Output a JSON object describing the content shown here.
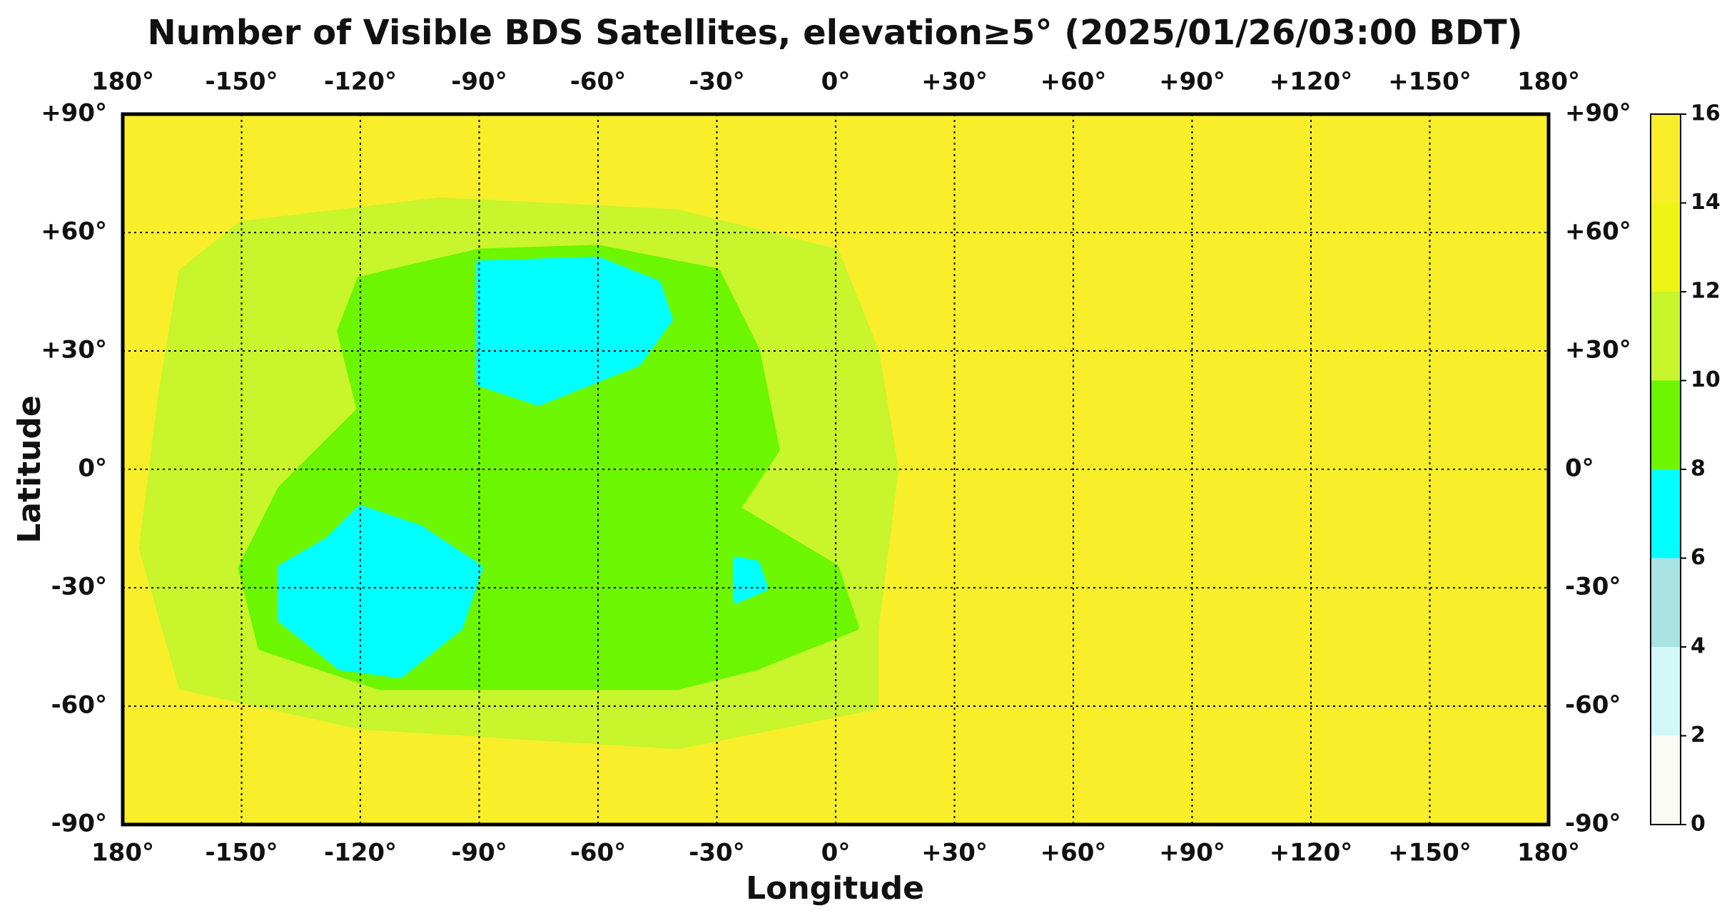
{
  "chart_data": {
    "type": "map",
    "title": "Number of Visible BDS Satellites, elevation≥5° (2025/01/26/03:00 BDT)",
    "x_label": "Longitude",
    "y_label": "Latitude",
    "xlim": [
      -180,
      180
    ],
    "ylim": [
      -90,
      90
    ],
    "xticks": [
      {
        "value": -180,
        "label": "180°"
      },
      {
        "value": -150,
        "label": "-150°"
      },
      {
        "value": -120,
        "label": "-120°"
      },
      {
        "value": -90,
        "label": "-90°"
      },
      {
        "value": -60,
        "label": "-60°"
      },
      {
        "value": -30,
        "label": "-30°"
      },
      {
        "value": 0,
        "label": "0°"
      },
      {
        "value": 30,
        "label": "+30°"
      },
      {
        "value": 60,
        "label": "+60°"
      },
      {
        "value": 90,
        "label": "+90°"
      },
      {
        "value": 120,
        "label": "+120°"
      },
      {
        "value": 150,
        "label": "+150°"
      },
      {
        "value": 180,
        "label": "180°"
      }
    ],
    "yticks": [
      {
        "value": -90,
        "label": "-90°"
      },
      {
        "value": -60,
        "label": "-60°"
      },
      {
        "value": -30,
        "label": "-30°"
      },
      {
        "value": 0,
        "label": "0°"
      },
      {
        "value": 30,
        "label": "+30°"
      },
      {
        "value": 60,
        "label": "+60°"
      },
      {
        "value": 90,
        "label": "+90°"
      }
    ],
    "grid": true,
    "colorbar_levels": [
      0,
      2,
      4,
      6,
      8,
      10,
      12,
      14,
      16
    ],
    "colorbar_colors": [
      "#fbfbf5",
      "#d2f8f8",
      "#a9e3e3",
      "#00ffff",
      "#6cf600",
      "#c8f52c",
      "#eef514",
      "#f8ee2a"
    ],
    "regions": [
      {
        "value": 15,
        "lonlat": [
          [
            -180,
            90
          ],
          [
            180,
            90
          ],
          [
            180,
            -90
          ],
          [
            -180,
            -90
          ]
        ]
      },
      {
        "value": 11,
        "lonlat": [
          [
            -150,
            62
          ],
          [
            -100,
            68
          ],
          [
            -40,
            65
          ],
          [
            0,
            55
          ],
          [
            10,
            30
          ],
          [
            15,
            0
          ],
          [
            10,
            -40
          ],
          [
            10,
            -60
          ],
          [
            -40,
            -70
          ],
          [
            -120,
            -65
          ],
          [
            -165,
            -55
          ],
          [
            -175,
            -20
          ],
          [
            -170,
            20
          ],
          [
            -165,
            50
          ]
        ]
      },
      {
        "value": 9,
        "lonlat": [
          [
            -120,
            48
          ],
          [
            -90,
            55
          ],
          [
            -60,
            56
          ],
          [
            -30,
            50
          ],
          [
            -20,
            30
          ],
          [
            -15,
            5
          ],
          [
            -25,
            -10
          ],
          [
            0,
            -25
          ],
          [
            5,
            -40
          ],
          [
            -20,
            -50
          ],
          [
            -40,
            -55
          ],
          [
            -80,
            -55
          ],
          [
            -115,
            -55
          ],
          [
            -145,
            -45
          ],
          [
            -150,
            -25
          ],
          [
            -140,
            -5
          ],
          [
            -120,
            15
          ],
          [
            -125,
            35
          ]
        ]
      },
      {
        "value": 7,
        "lonlat": [
          [
            -90,
            52
          ],
          [
            -60,
            53
          ],
          [
            -45,
            47
          ],
          [
            -42,
            38
          ],
          [
            -50,
            27
          ],
          [
            -75,
            17
          ],
          [
            -90,
            22
          ],
          [
            -90,
            40
          ]
        ]
      },
      {
        "value": 7,
        "lonlat": [
          [
            -120,
            -10
          ],
          [
            -105,
            -15
          ],
          [
            -90,
            -25
          ],
          [
            -95,
            -40
          ],
          [
            -110,
            -52
          ],
          [
            -125,
            -50
          ],
          [
            -140,
            -38
          ],
          [
            -140,
            -25
          ],
          [
            -128,
            -18
          ]
        ]
      },
      {
        "value": 7,
        "lonlat": [
          [
            -25,
            -23
          ],
          [
            -20,
            -24
          ],
          [
            -18,
            -30
          ],
          [
            -25,
            -33
          ]
        ]
      }
    ]
  }
}
